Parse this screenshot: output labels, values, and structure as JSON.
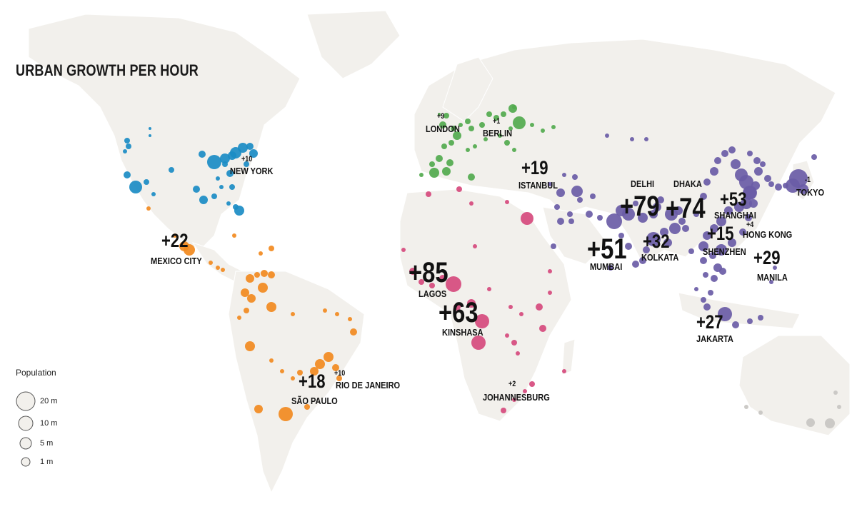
{
  "title": "URBAN GROWTH PER HOUR",
  "colors": {
    "land": "#f2f0ec",
    "north_america": "#1b8cc4",
    "latin_america": "#f28a20",
    "europe": "#52aa4e",
    "africa": "#d64a7d",
    "asia": "#6a5ca6",
    "oceania": "#c8c6c2",
    "label": "#111111"
  },
  "legend": {
    "title": "Population",
    "items": [
      {
        "label": "20 m",
        "population_m": 20
      },
      {
        "label": "10 m",
        "population_m": 10
      },
      {
        "label": "5 m",
        "population_m": 5
      },
      {
        "label": "1 m",
        "population_m": 1
      }
    ]
  },
  "cities": [
    {
      "name": "NEW YORK",
      "growth": "+10",
      "region": "north_america",
      "size": "small"
    },
    {
      "name": "MEXICO CITY",
      "growth": "+22",
      "region": "latin_america",
      "size": "medium"
    },
    {
      "name": "SÃO PAULO",
      "growth": "+18",
      "region": "latin_america",
      "size": "medium"
    },
    {
      "name": "RIO DE JANEIRO",
      "growth": "+10",
      "region": "latin_america",
      "size": "small"
    },
    {
      "name": "LONDON",
      "growth": "+9",
      "region": "europe",
      "size": "small"
    },
    {
      "name": "BERLIN",
      "growth": "+1",
      "region": "europe",
      "size": "small"
    },
    {
      "name": "ISTANBUL",
      "growth": "+19",
      "region": "europe",
      "size": "medium"
    },
    {
      "name": "LAGOS",
      "growth": "+85",
      "region": "africa",
      "size": "large"
    },
    {
      "name": "KINSHASA",
      "growth": "+63",
      "region": "africa",
      "size": "large"
    },
    {
      "name": "JOHANNESBURG",
      "growth": "+2",
      "region": "africa",
      "size": "small"
    },
    {
      "name": "DELHI",
      "growth": "+79",
      "region": "asia",
      "size": "large"
    },
    {
      "name": "DHAKA",
      "growth": "+74",
      "region": "asia",
      "size": "large"
    },
    {
      "name": "MUMBAI",
      "growth": "+51",
      "region": "asia",
      "size": "large"
    },
    {
      "name": "KOLKATA",
      "growth": "+32",
      "region": "asia",
      "size": "medium"
    },
    {
      "name": "SHANGHAI",
      "growth": "+53",
      "region": "asia",
      "size": "medium"
    },
    {
      "name": "HONG KONG",
      "growth": "+4",
      "region": "asia",
      "size": "small"
    },
    {
      "name": "SHENZHEN",
      "growth": "+15",
      "region": "asia",
      "size": "medium"
    },
    {
      "name": "TOKYO",
      "growth": "-1",
      "region": "asia",
      "size": "small"
    },
    {
      "name": "MANILA",
      "growth": "+29",
      "region": "asia",
      "size": "medium"
    },
    {
      "name": "JAKARTA",
      "growth": "+27",
      "region": "asia",
      "size": "medium"
    }
  ]
}
